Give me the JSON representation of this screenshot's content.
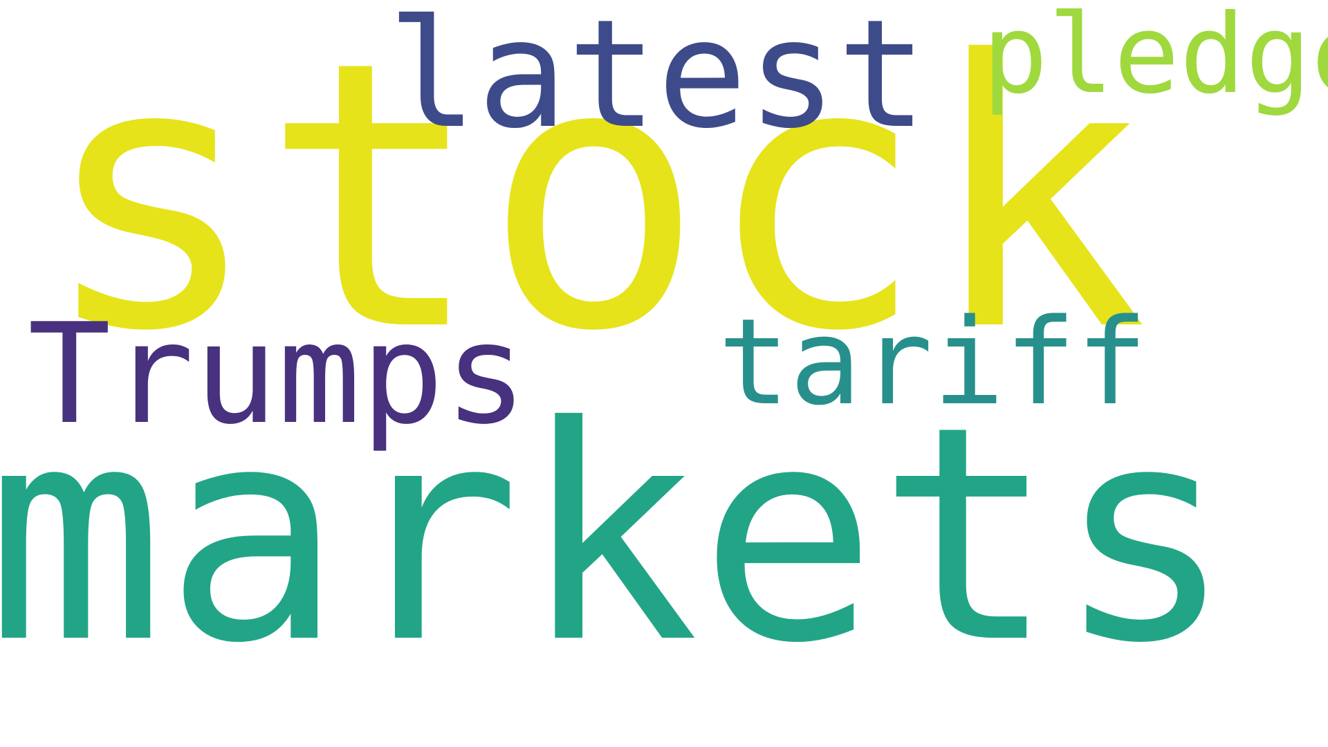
{
  "word_cloud": {
    "words": [
      {
        "text": "stock",
        "color": "#e6e31a"
      },
      {
        "text": "markets",
        "color": "#22a586"
      },
      {
        "text": "latest",
        "color": "#3e4b8a"
      },
      {
        "text": "Trumps",
        "color": "#48317e"
      },
      {
        "text": "tariff",
        "color": "#28908c"
      },
      {
        "text": "pledge",
        "color": "#9fd93e"
      }
    ]
  }
}
